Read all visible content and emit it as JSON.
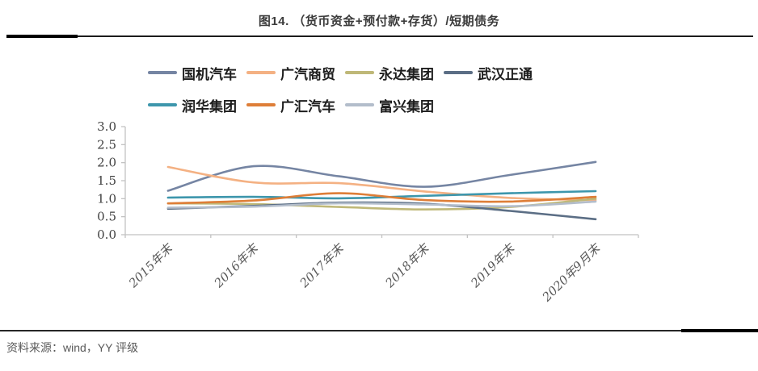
{
  "figure": {
    "title": "图14.  （货币资金+预付款+存货）/短期债务",
    "source": "资料来源：wind，YY 评级"
  },
  "chart_data": {
    "type": "line",
    "smooth": true,
    "title": "（货币资金+预付款+存货）/短期债务",
    "xlabel": "",
    "ylabel": "",
    "ylim": [
      0.0,
      3.0
    ],
    "y_ticks": [
      "3.0",
      "2.5",
      "2.0",
      "1.5",
      "1.0",
      "0.5",
      "0.0"
    ],
    "grid": false,
    "legend_position": "top-left-two-rows",
    "x_label_rotation_deg": -45,
    "categories": [
      "2015年末",
      "2016年末",
      "2017年末",
      "2018年末",
      "2019年末",
      "2020年9月末"
    ],
    "series": [
      {
        "name": "国机汽车",
        "color": "#7585A3",
        "values": [
          1.22,
          1.9,
          1.62,
          1.33,
          1.66,
          2.02
        ]
      },
      {
        "name": "广汽商贸",
        "color": "#F4B183",
        "values": [
          1.88,
          1.45,
          1.43,
          1.2,
          1.02,
          0.96
        ]
      },
      {
        "name": "永达集团",
        "color": "#BFB878",
        "values": [
          0.87,
          0.85,
          0.77,
          0.7,
          0.77,
          1.0
        ]
      },
      {
        "name": "武汉正通",
        "color": "#5B6E85",
        "values": [
          0.72,
          0.8,
          0.89,
          0.86,
          0.66,
          0.43
        ]
      },
      {
        "name": "润华集团",
        "color": "#3D96AC",
        "values": [
          1.03,
          1.05,
          1.01,
          1.08,
          1.15,
          1.21
        ]
      },
      {
        "name": "广汇汽车",
        "color": "#DE7E38",
        "values": [
          0.87,
          0.95,
          1.15,
          0.96,
          0.92,
          1.05
        ]
      },
      {
        "name": "富兴集团",
        "color": "#B3BDCB",
        "values": [
          0.75,
          0.78,
          0.87,
          0.84,
          0.79,
          0.92
        ]
      }
    ],
    "axis_color": "#C2C2C2",
    "y_label_color": "#3f3f3f",
    "x_label_color": "#595959"
  }
}
